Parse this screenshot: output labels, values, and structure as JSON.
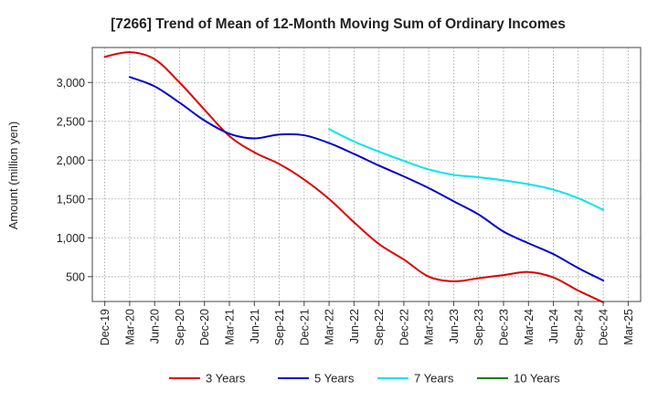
{
  "chart_data": {
    "type": "line",
    "title": "[7266]  Trend of Mean of 12-Month Moving Sum of Ordinary Incomes",
    "xlabel": "",
    "ylabel": "Amount (million yen)",
    "ylim": [
      180,
      3450
    ],
    "yticks": [
      500,
      1000,
      1500,
      2000,
      2500,
      3000
    ],
    "ytick_labels": [
      "500",
      "1,000",
      "1,500",
      "2,000",
      "2,500",
      "3,000"
    ],
    "categories": [
      "Dec-19",
      "Mar-20",
      "Jun-20",
      "Sep-20",
      "Dec-20",
      "Mar-21",
      "Jun-21",
      "Sep-21",
      "Dec-21",
      "Mar-22",
      "Jun-22",
      "Sep-22",
      "Dec-22",
      "Mar-23",
      "Jun-23",
      "Sep-23",
      "Dec-23",
      "Mar-24",
      "Jun-24",
      "Sep-24",
      "Dec-24",
      "Mar-25"
    ],
    "grid": true,
    "legend_position": "bottom",
    "series": [
      {
        "name": "3 Years",
        "color": "#dd0000",
        "values": [
          3330,
          3390,
          3300,
          3000,
          2650,
          2310,
          2100,
          1950,
          1750,
          1500,
          1200,
          920,
          720,
          500,
          440,
          480,
          520,
          560,
          490,
          320,
          170,
          null
        ]
      },
      {
        "name": "5 Years",
        "color": "#0000cc",
        "values": [
          null,
          3070,
          2950,
          2740,
          2510,
          2340,
          2280,
          2330,
          2320,
          2220,
          2080,
          1930,
          1790,
          1640,
          1470,
          1300,
          1080,
          930,
          790,
          610,
          450,
          null
        ]
      },
      {
        "name": "7 Years",
        "color": "#00e5ee",
        "values": [
          null,
          null,
          null,
          null,
          null,
          null,
          null,
          null,
          null,
          2400,
          2240,
          2110,
          1990,
          1880,
          1810,
          1780,
          1740,
          1690,
          1620,
          1510,
          1360,
          null
        ]
      },
      {
        "name": "10 Years",
        "color": "#008000",
        "values": [
          null,
          null,
          null,
          null,
          null,
          null,
          null,
          null,
          null,
          null,
          null,
          null,
          null,
          null,
          null,
          null,
          null,
          null,
          null,
          null,
          null,
          null
        ]
      }
    ]
  }
}
